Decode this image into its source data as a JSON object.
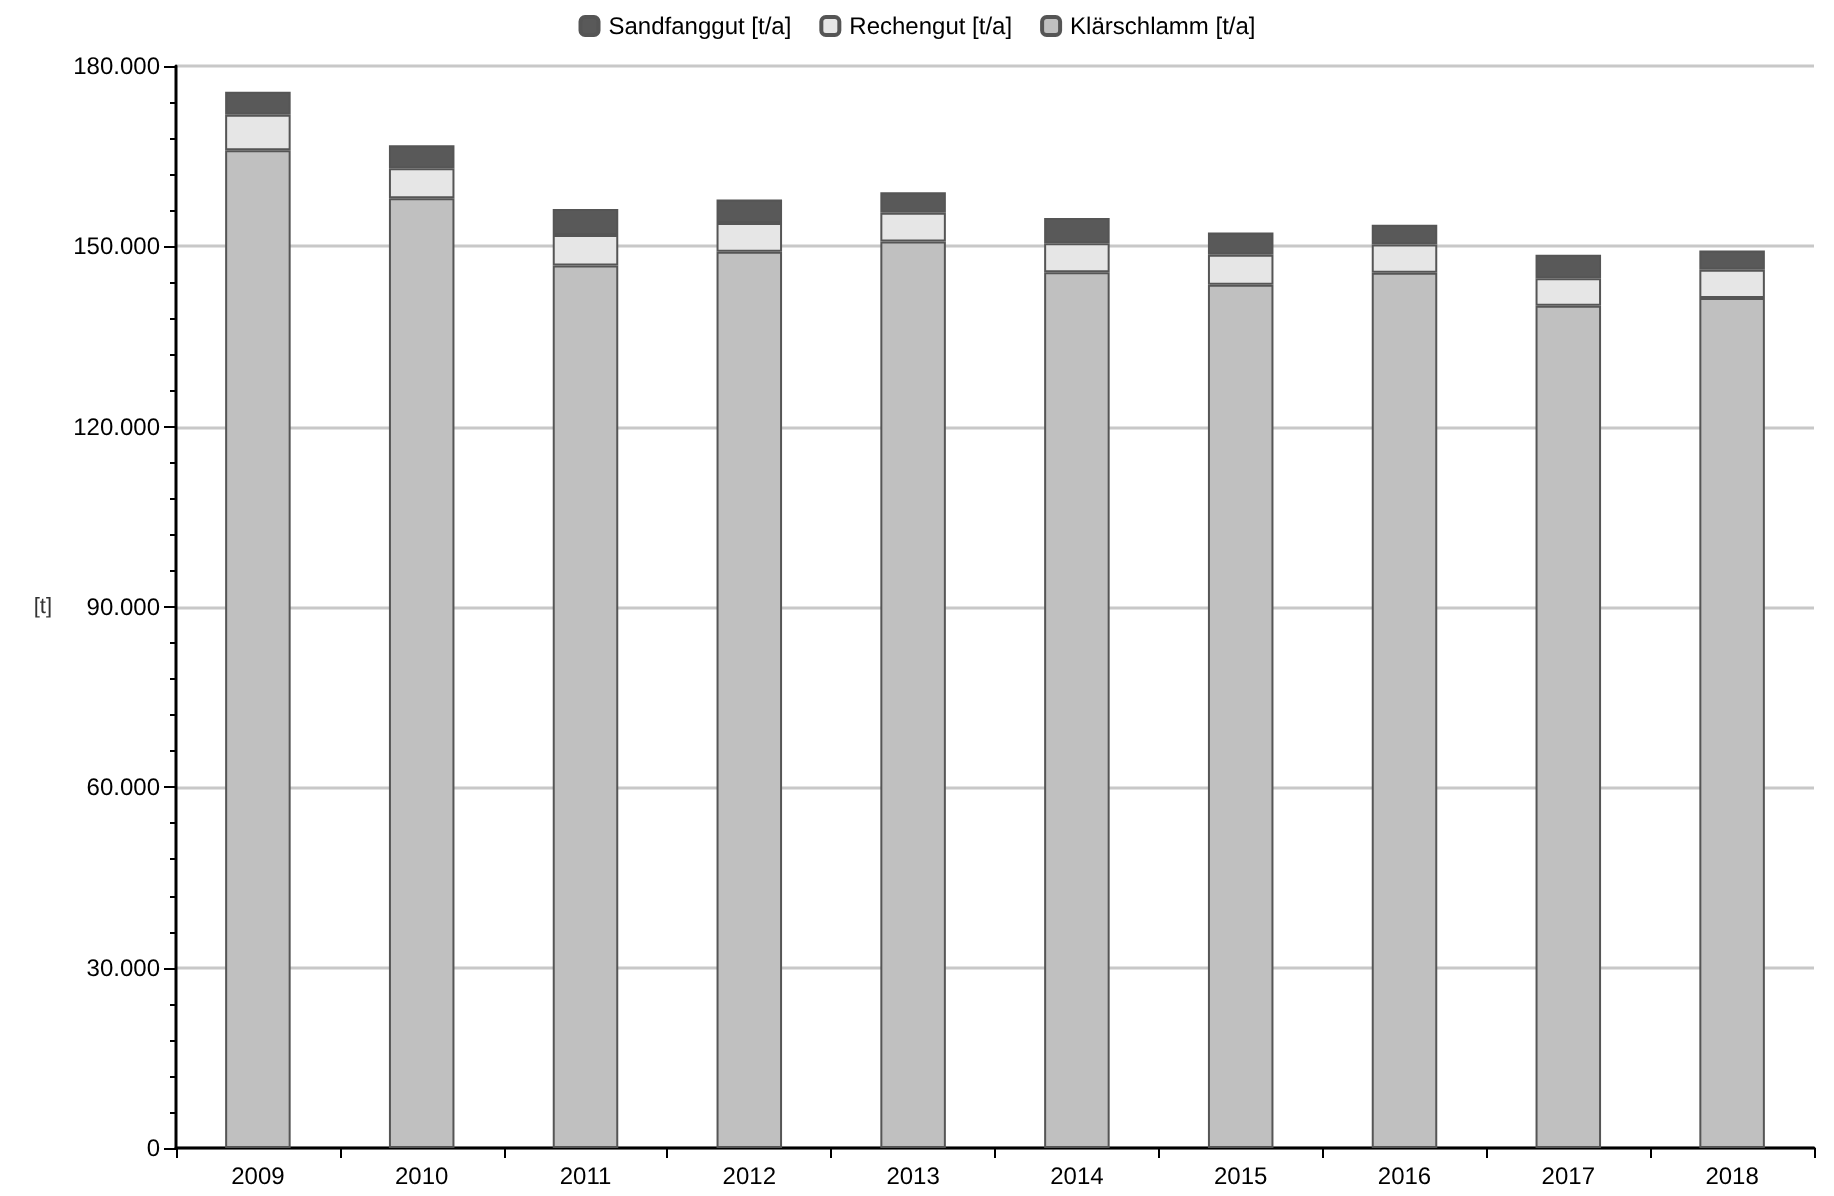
{
  "chart_data": {
    "type": "bar",
    "stacked": true,
    "ylabel": "[t]",
    "categories": [
      "2009",
      "2010",
      "2011",
      "2012",
      "2013",
      "2014",
      "2015",
      "2016",
      "2017",
      "2018"
    ],
    "series": [
      {
        "name": "Klärschlamm [t/a]",
        "color": "#c0c0c0",
        "values": [
          166000,
          158000,
          146800,
          149100,
          150800,
          145700,
          143600,
          145600,
          140100,
          141400
        ]
      },
      {
        "name": "Rechengut [t/a]",
        "color": "#e6e6e6",
        "values": [
          5900,
          5000,
          5100,
          4800,
          4800,
          4800,
          5000,
          4700,
          4600,
          4700
        ]
      },
      {
        "name": "Sandfanggut [t/a]",
        "color": "#595959",
        "values": [
          3800,
          3800,
          4300,
          3900,
          3400,
          4200,
          3700,
          3300,
          3900,
          3200
        ]
      }
    ],
    "ylim": [
      0,
      180000
    ],
    "yticks": [
      {
        "value": 0,
        "label": "0"
      },
      {
        "value": 30000,
        "label": "30.000"
      },
      {
        "value": 60000,
        "label": "60.000"
      },
      {
        "value": 90000,
        "label": "90.000"
      },
      {
        "value": 120000,
        "label": "120.000"
      },
      {
        "value": 150000,
        "label": "150.000"
      },
      {
        "value": 180000,
        "label": "180.000"
      }
    ],
    "grid": "y",
    "legend": "top"
  }
}
